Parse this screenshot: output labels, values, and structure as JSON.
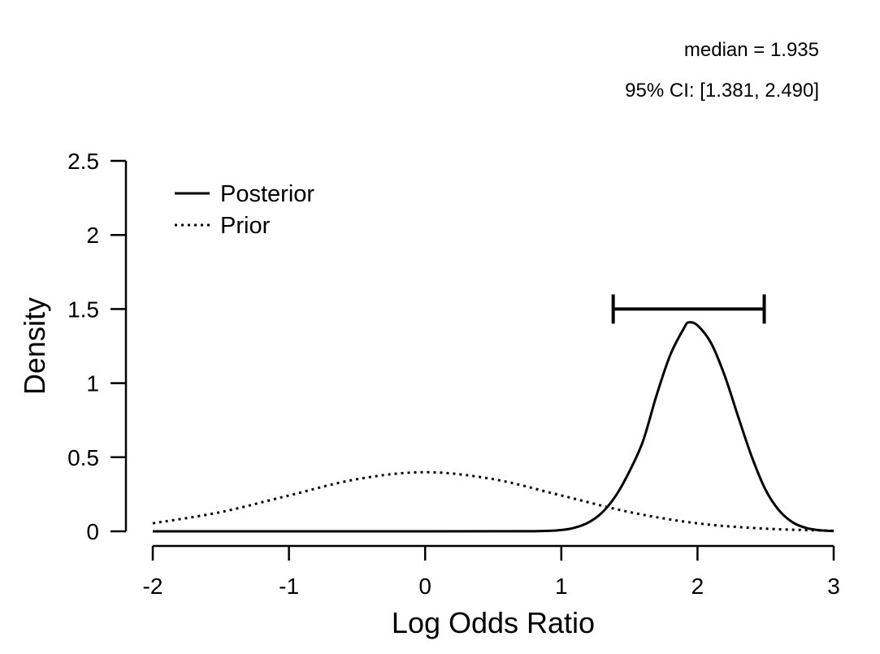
{
  "chart_data": {
    "type": "line",
    "title": "",
    "xlabel": "Log Odds Ratio",
    "ylabel": "Density",
    "xlim": [
      -2,
      3
    ],
    "ylim": [
      0,
      2.5
    ],
    "xticks": [
      -2,
      -1,
      0,
      1,
      2,
      3
    ],
    "xtick_labels": [
      "-2",
      "-1",
      "0",
      "1",
      "2",
      "3"
    ],
    "yticks": [
      0,
      0.5,
      1,
      1.5,
      2,
      2.5
    ],
    "ytick_labels": [
      "0",
      "0.5",
      "1",
      "1.5",
      "2",
      "2.5"
    ],
    "grid": false,
    "legend_position": "top-left",
    "series": [
      {
        "name": "Posterior",
        "style": "solid",
        "x": [
          -2,
          0,
          0.8,
          1.0,
          1.1,
          1.2,
          1.3,
          1.4,
          1.5,
          1.6,
          1.7,
          1.8,
          1.9,
          1.935,
          2.0,
          2.1,
          2.2,
          2.3,
          2.4,
          2.5,
          2.6,
          2.7,
          2.8,
          2.9,
          3.0
        ],
        "y": [
          0,
          0,
          0.001,
          0.009,
          0.025,
          0.06,
          0.127,
          0.24,
          0.404,
          0.609,
          0.92,
          1.19,
          1.37,
          1.41,
          1.39,
          1.27,
          1.05,
          0.77,
          0.5,
          0.28,
          0.14,
          0.06,
          0.022,
          0.007,
          0.002
        ]
      },
      {
        "name": "Prior",
        "style": "dotted",
        "x": [
          -2,
          -1.5,
          -1,
          -0.5,
          0,
          0.5,
          1,
          1.5,
          2,
          2.5,
          3
        ],
        "y": [
          0.054,
          0.13,
          0.242,
          0.352,
          0.399,
          0.352,
          0.242,
          0.13,
          0.054,
          0.018,
          0.004
        ]
      }
    ],
    "interval": {
      "median": 1.935,
      "lower": 1.381,
      "upper": 2.49,
      "y": 1.5
    },
    "annotations": {
      "median_text": "median = 1.935",
      "ci_text": "95% CI: [1.381, 2.490]"
    }
  }
}
